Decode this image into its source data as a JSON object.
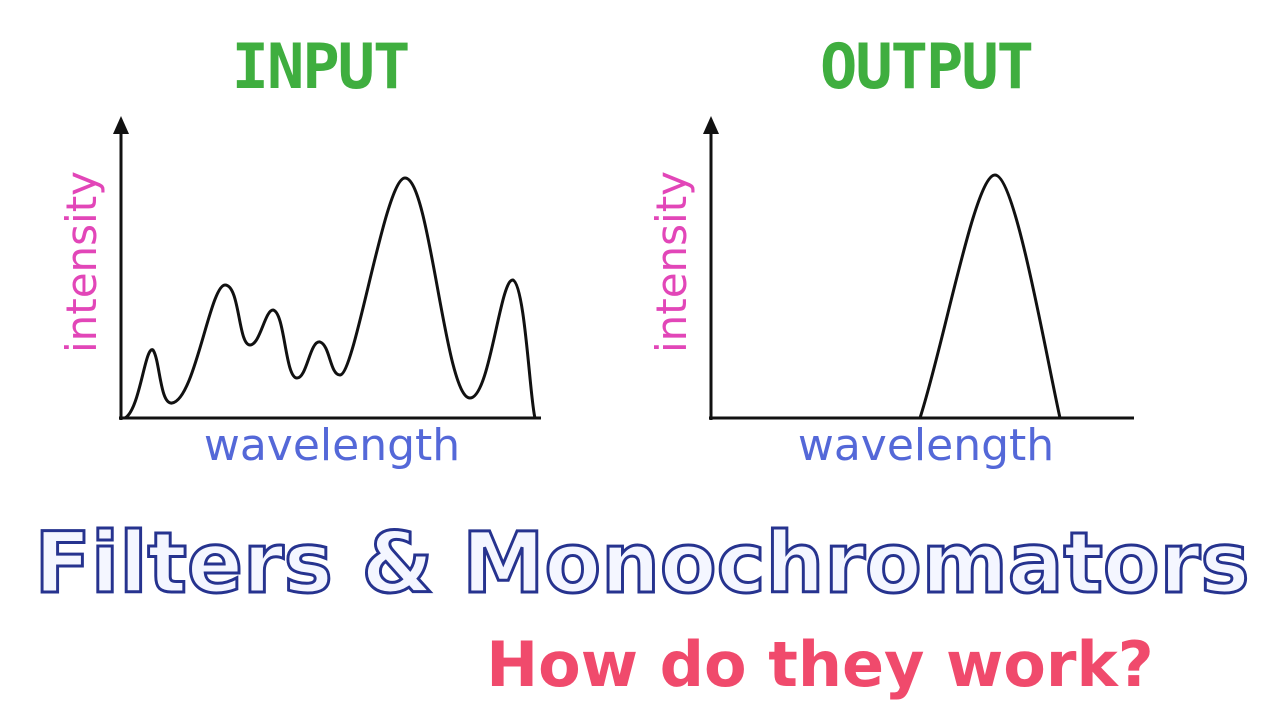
{
  "panels": [
    {
      "title": "INPUT",
      "y_label": "intensity",
      "x_label": "wavelength"
    },
    {
      "title": "OUTPUT",
      "y_label": "intensity",
      "x_label": "wavelength"
    }
  ],
  "heading": {
    "title": "Filters & Monochromators",
    "subtitle": "How do they work?"
  }
}
